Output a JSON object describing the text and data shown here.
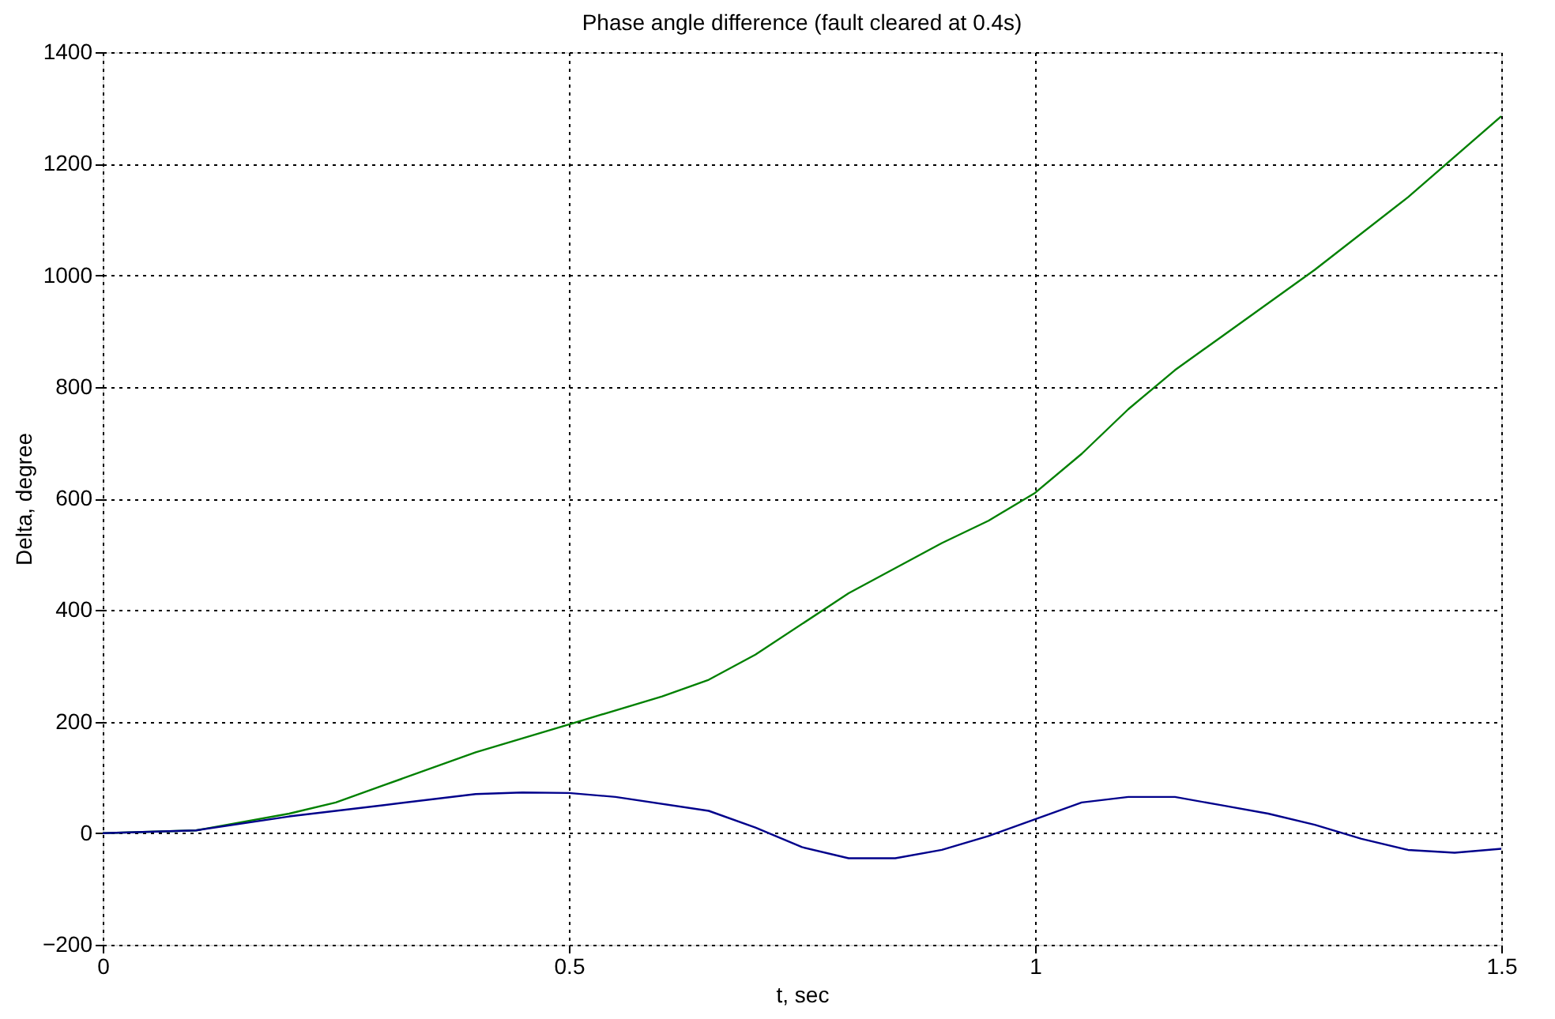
{
  "chart_data": {
    "type": "line",
    "title": "Phase angle difference (fault cleared at 0.4s)",
    "xlabel": "t, sec",
    "ylabel": "Delta, degree",
    "xlim": [
      0,
      1.5
    ],
    "xticks": [
      0,
      0.5,
      1,
      1.5
    ],
    "ylim": [
      -200,
      1400
    ],
    "yticks": [
      -200,
      0,
      200,
      400,
      600,
      800,
      1000,
      1200,
      1400
    ],
    "grid": true,
    "series": [
      {
        "color": "#008000",
        "x": [
          0,
          0.1,
          0.2,
          0.25,
          0.3,
          0.4,
          0.5,
          0.6,
          0.65,
          0.7,
          0.8,
          0.9,
          0.95,
          1.0,
          1.05,
          1.1,
          1.15,
          1.2,
          1.3,
          1.4,
          1.5
        ],
        "values": [
          0,
          5,
          35,
          55,
          85,
          145,
          195,
          245,
          275,
          320,
          430,
          520,
          560,
          610,
          680,
          760,
          830,
          890,
          1010,
          1140,
          1285
        ]
      },
      {
        "color": "#00008b",
        "x": [
          0,
          0.1,
          0.2,
          0.3,
          0.4,
          0.45,
          0.5,
          0.55,
          0.65,
          0.7,
          0.75,
          0.8,
          0.85,
          0.9,
          0.95,
          1.0,
          1.05,
          1.1,
          1.15,
          1.2,
          1.25,
          1.3,
          1.35,
          1.4,
          1.45,
          1.5
        ],
        "values": [
          0,
          5,
          30,
          50,
          70,
          73,
          72,
          65,
          40,
          10,
          -25,
          -45,
          -45,
          -30,
          -5,
          25,
          55,
          65,
          65,
          50,
          35,
          15,
          -10,
          -30,
          -35,
          -28
        ]
      }
    ]
  }
}
